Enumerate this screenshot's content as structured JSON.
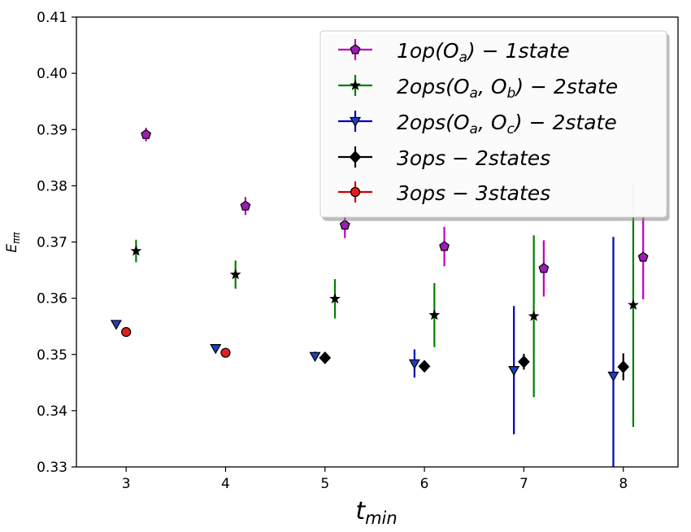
{
  "chart_data": {
    "type": "scatter",
    "xlabel_main": "t",
    "xlabel_sub": "min",
    "ylabel_main": "E",
    "ylabel_sub": "ππ",
    "xlim": [
      2.5,
      8.55
    ],
    "ylim": [
      0.33,
      0.41
    ],
    "xticks": [
      3,
      4,
      5,
      6,
      7,
      8
    ],
    "yticks": [
      0.33,
      0.34,
      0.35,
      0.36,
      0.37,
      0.38,
      0.39,
      0.4,
      0.41
    ],
    "ytick_labels": [
      "0.33",
      "0.34",
      "0.35",
      "0.36",
      "0.37",
      "0.38",
      "0.39",
      "0.40",
      "0.41"
    ],
    "grid": false,
    "legend_position": "top-right",
    "series": [
      {
        "legend": {
          "a": "1op(O",
          "b": "a",
          "c": ") − 1state"
        },
        "marker": "pentagon",
        "color": "#c000c0",
        "fill": "#9a1fb0",
        "points": [
          {
            "x": 3.2,
            "y": 0.3891,
            "err": 0.0012
          },
          {
            "x": 4.2,
            "y": 0.3764,
            "err": 0.0016
          },
          {
            "x": 5.2,
            "y": 0.373,
            "err": 0.0023
          },
          {
            "x": 6.2,
            "y": 0.3692,
            "err": 0.0035
          },
          {
            "x": 7.2,
            "y": 0.3653,
            "err": 0.005
          },
          {
            "x": 8.2,
            "y": 0.3673,
            "err": 0.0075
          }
        ]
      },
      {
        "legend": {
          "a": "2ops(O",
          "b": "a",
          "c": ", O",
          "d": "b",
          "e": ") − 2state"
        },
        "marker": "star",
        "color": "#008000",
        "fill": "#000000",
        "points": [
          {
            "x": 3.1,
            "y": 0.3684,
            "err": 0.002
          },
          {
            "x": 4.1,
            "y": 0.3642,
            "err": 0.0025
          },
          {
            "x": 5.1,
            "y": 0.3599,
            "err": 0.0035
          },
          {
            "x": 6.1,
            "y": 0.357,
            "err": 0.0057
          },
          {
            "x": 7.1,
            "y": 0.3568,
            "err": 0.0144
          },
          {
            "x": 8.1,
            "y": 0.3588,
            "err": 0.0217
          }
        ]
      },
      {
        "legend": {
          "a": "2ops(O",
          "b": "a",
          "c": ", O",
          "d": "c",
          "e": ") − 2state"
        },
        "marker": "triangle-down",
        "color": "#0000c0",
        "fill": "#1f3fc0",
        "points": [
          {
            "x": 2.9,
            "y": 0.3554,
            "err": 0.0006
          },
          {
            "x": 3.9,
            "y": 0.3511,
            "err": 0.0007
          },
          {
            "x": 4.9,
            "y": 0.3497,
            "err": 0.0008
          },
          {
            "x": 5.9,
            "y": 0.3484,
            "err": 0.0025
          },
          {
            "x": 6.9,
            "y": 0.3472,
            "err": 0.0114
          },
          {
            "x": 7.9,
            "y": 0.3462,
            "err": 0.0247
          }
        ]
      },
      {
        "legend": {
          "a": "3ops − 2states"
        },
        "marker": "diamond",
        "color": "#000000",
        "fill": "#000000",
        "points": [
          {
            "x": 5.0,
            "y": 0.3494,
            "err": 0.0005
          },
          {
            "x": 6.0,
            "y": 0.3479,
            "err": 0.0008
          },
          {
            "x": 7.0,
            "y": 0.3487,
            "err": 0.0014
          },
          {
            "x": 8.0,
            "y": 0.3478,
            "err": 0.0024
          }
        ]
      },
      {
        "legend": {
          "a": "3ops − 3states"
        },
        "marker": "circle",
        "color": "#d00000",
        "fill": "#e02020",
        "points": [
          {
            "x": 3.0,
            "y": 0.354,
            "err": 0.0004
          },
          {
            "x": 4.0,
            "y": 0.3503,
            "err": 0.0004
          }
        ]
      }
    ]
  }
}
